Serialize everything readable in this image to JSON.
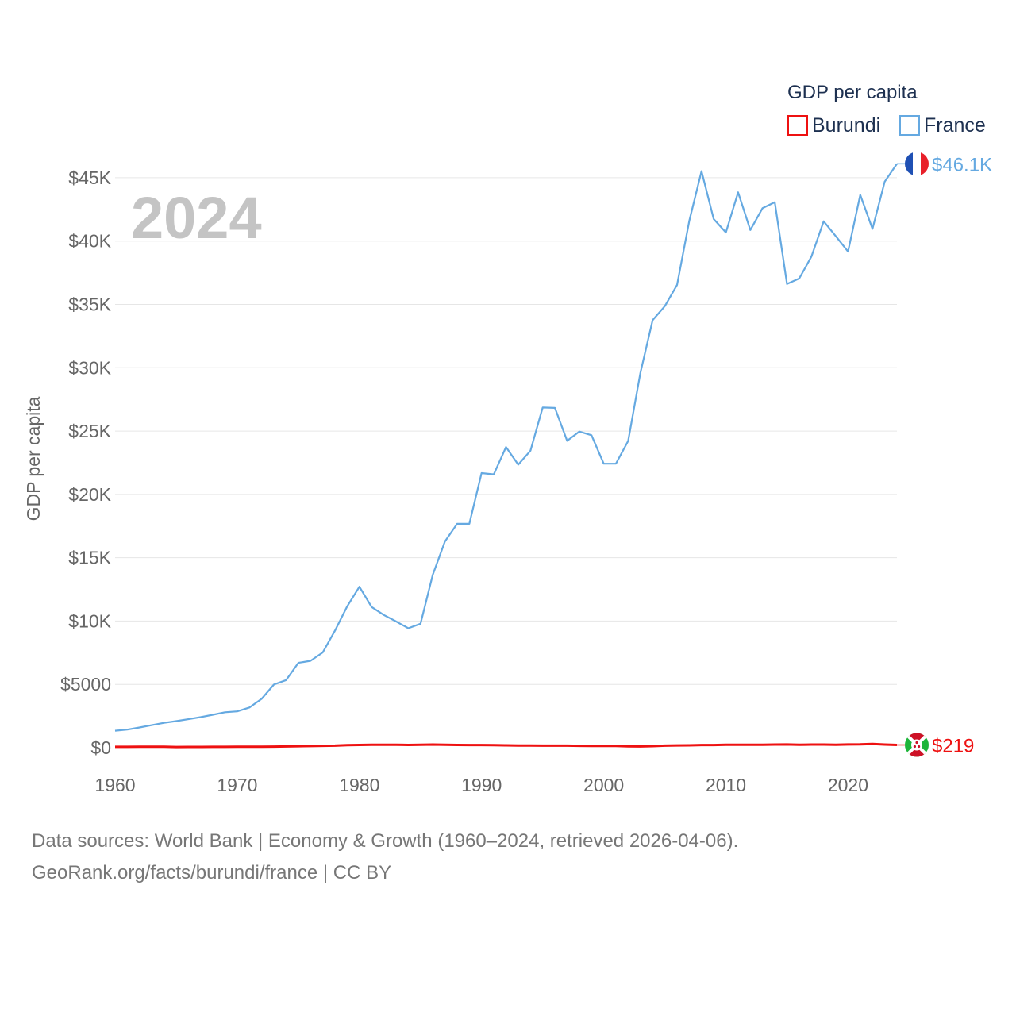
{
  "chart_data": {
    "type": "line",
    "title": "GDP per capita",
    "ylabel": "GDP per capita",
    "xlabel": "",
    "current_year_label": "2024",
    "xlim": [
      1960,
      2024
    ],
    "ylim": [
      0,
      47000
    ],
    "x_ticks": [
      1960,
      1970,
      1980,
      1990,
      2000,
      2010,
      2020
    ],
    "x_tick_labels": [
      "1960",
      "1970",
      "1980",
      "1990",
      "2000",
      "2010",
      "2020"
    ],
    "y_ticks": [
      0,
      5000,
      10000,
      15000,
      20000,
      25000,
      30000,
      35000,
      40000,
      45000
    ],
    "y_tick_labels": [
      "$0",
      "$5000",
      "$10K",
      "$15K",
      "$20K",
      "$25K",
      "$30K",
      "$35K",
      "$40K",
      "$45K"
    ],
    "grid": true,
    "legend_position": "top-right",
    "x": [
      1960,
      1961,
      1962,
      1963,
      1964,
      1965,
      1966,
      1967,
      1968,
      1969,
      1970,
      1971,
      1972,
      1973,
      1974,
      1975,
      1976,
      1977,
      1978,
      1979,
      1980,
      1981,
      1982,
      1983,
      1984,
      1985,
      1986,
      1987,
      1988,
      1989,
      1990,
      1991,
      1992,
      1993,
      1994,
      1995,
      1996,
      1997,
      1998,
      1999,
      2000,
      2001,
      2002,
      2003,
      2004,
      2005,
      2006,
      2007,
      2008,
      2009,
      2010,
      2011,
      2012,
      2013,
      2014,
      2015,
      2016,
      2017,
      2018,
      2019,
      2020,
      2021,
      2022,
      2023,
      2024
    ],
    "series": [
      {
        "name": "Burundi",
        "color": "#ee1111",
        "end_label": "$219",
        "flag": "burundi-flag-icon",
        "values": [
          70,
          72,
          75,
          78,
          80,
          55,
          60,
          65,
          68,
          70,
          75,
          80,
          75,
          90,
          100,
          120,
          130,
          150,
          160,
          200,
          220,
          230,
          230,
          235,
          220,
          240,
          250,
          240,
          220,
          215,
          210,
          205,
          190,
          175,
          170,
          165,
          160,
          165,
          150,
          145,
          140,
          135,
          110,
          100,
          125,
          160,
          180,
          190,
          215,
          210,
          230,
          240,
          240,
          240,
          250,
          260,
          240,
          250,
          250,
          240,
          260,
          265,
          300,
          250,
          219
        ]
      },
      {
        "name": "France",
        "color": "#65a9e1",
        "end_label": "$46.1K",
        "flag": "france-flag-icon",
        "values": [
          1340,
          1430,
          1600,
          1780,
          1960,
          2100,
          2250,
          2410,
          2600,
          2800,
          2870,
          3180,
          3860,
          4990,
          5340,
          6700,
          6860,
          7520,
          9240,
          11160,
          12710,
          11110,
          10480,
          9970,
          9430,
          9790,
          13650,
          16280,
          17680,
          17680,
          21680,
          21580,
          23740,
          22350,
          23450,
          26860,
          26830,
          24230,
          24960,
          24670,
          22420,
          22430,
          24220,
          29600,
          33750,
          34860,
          36540,
          41600,
          45520,
          41740,
          40680,
          43850,
          40870,
          42600,
          43070,
          36610,
          37040,
          38780,
          41560,
          40380,
          39170,
          43650,
          40960,
          44690,
          46100
        ]
      }
    ]
  },
  "footer": {
    "line1": "Data sources: World Bank | Economy & Growth (1960–2024, retrieved 2026-04-06).",
    "line2": "GeoRank.org/facts/burundi/france | CC BY"
  }
}
